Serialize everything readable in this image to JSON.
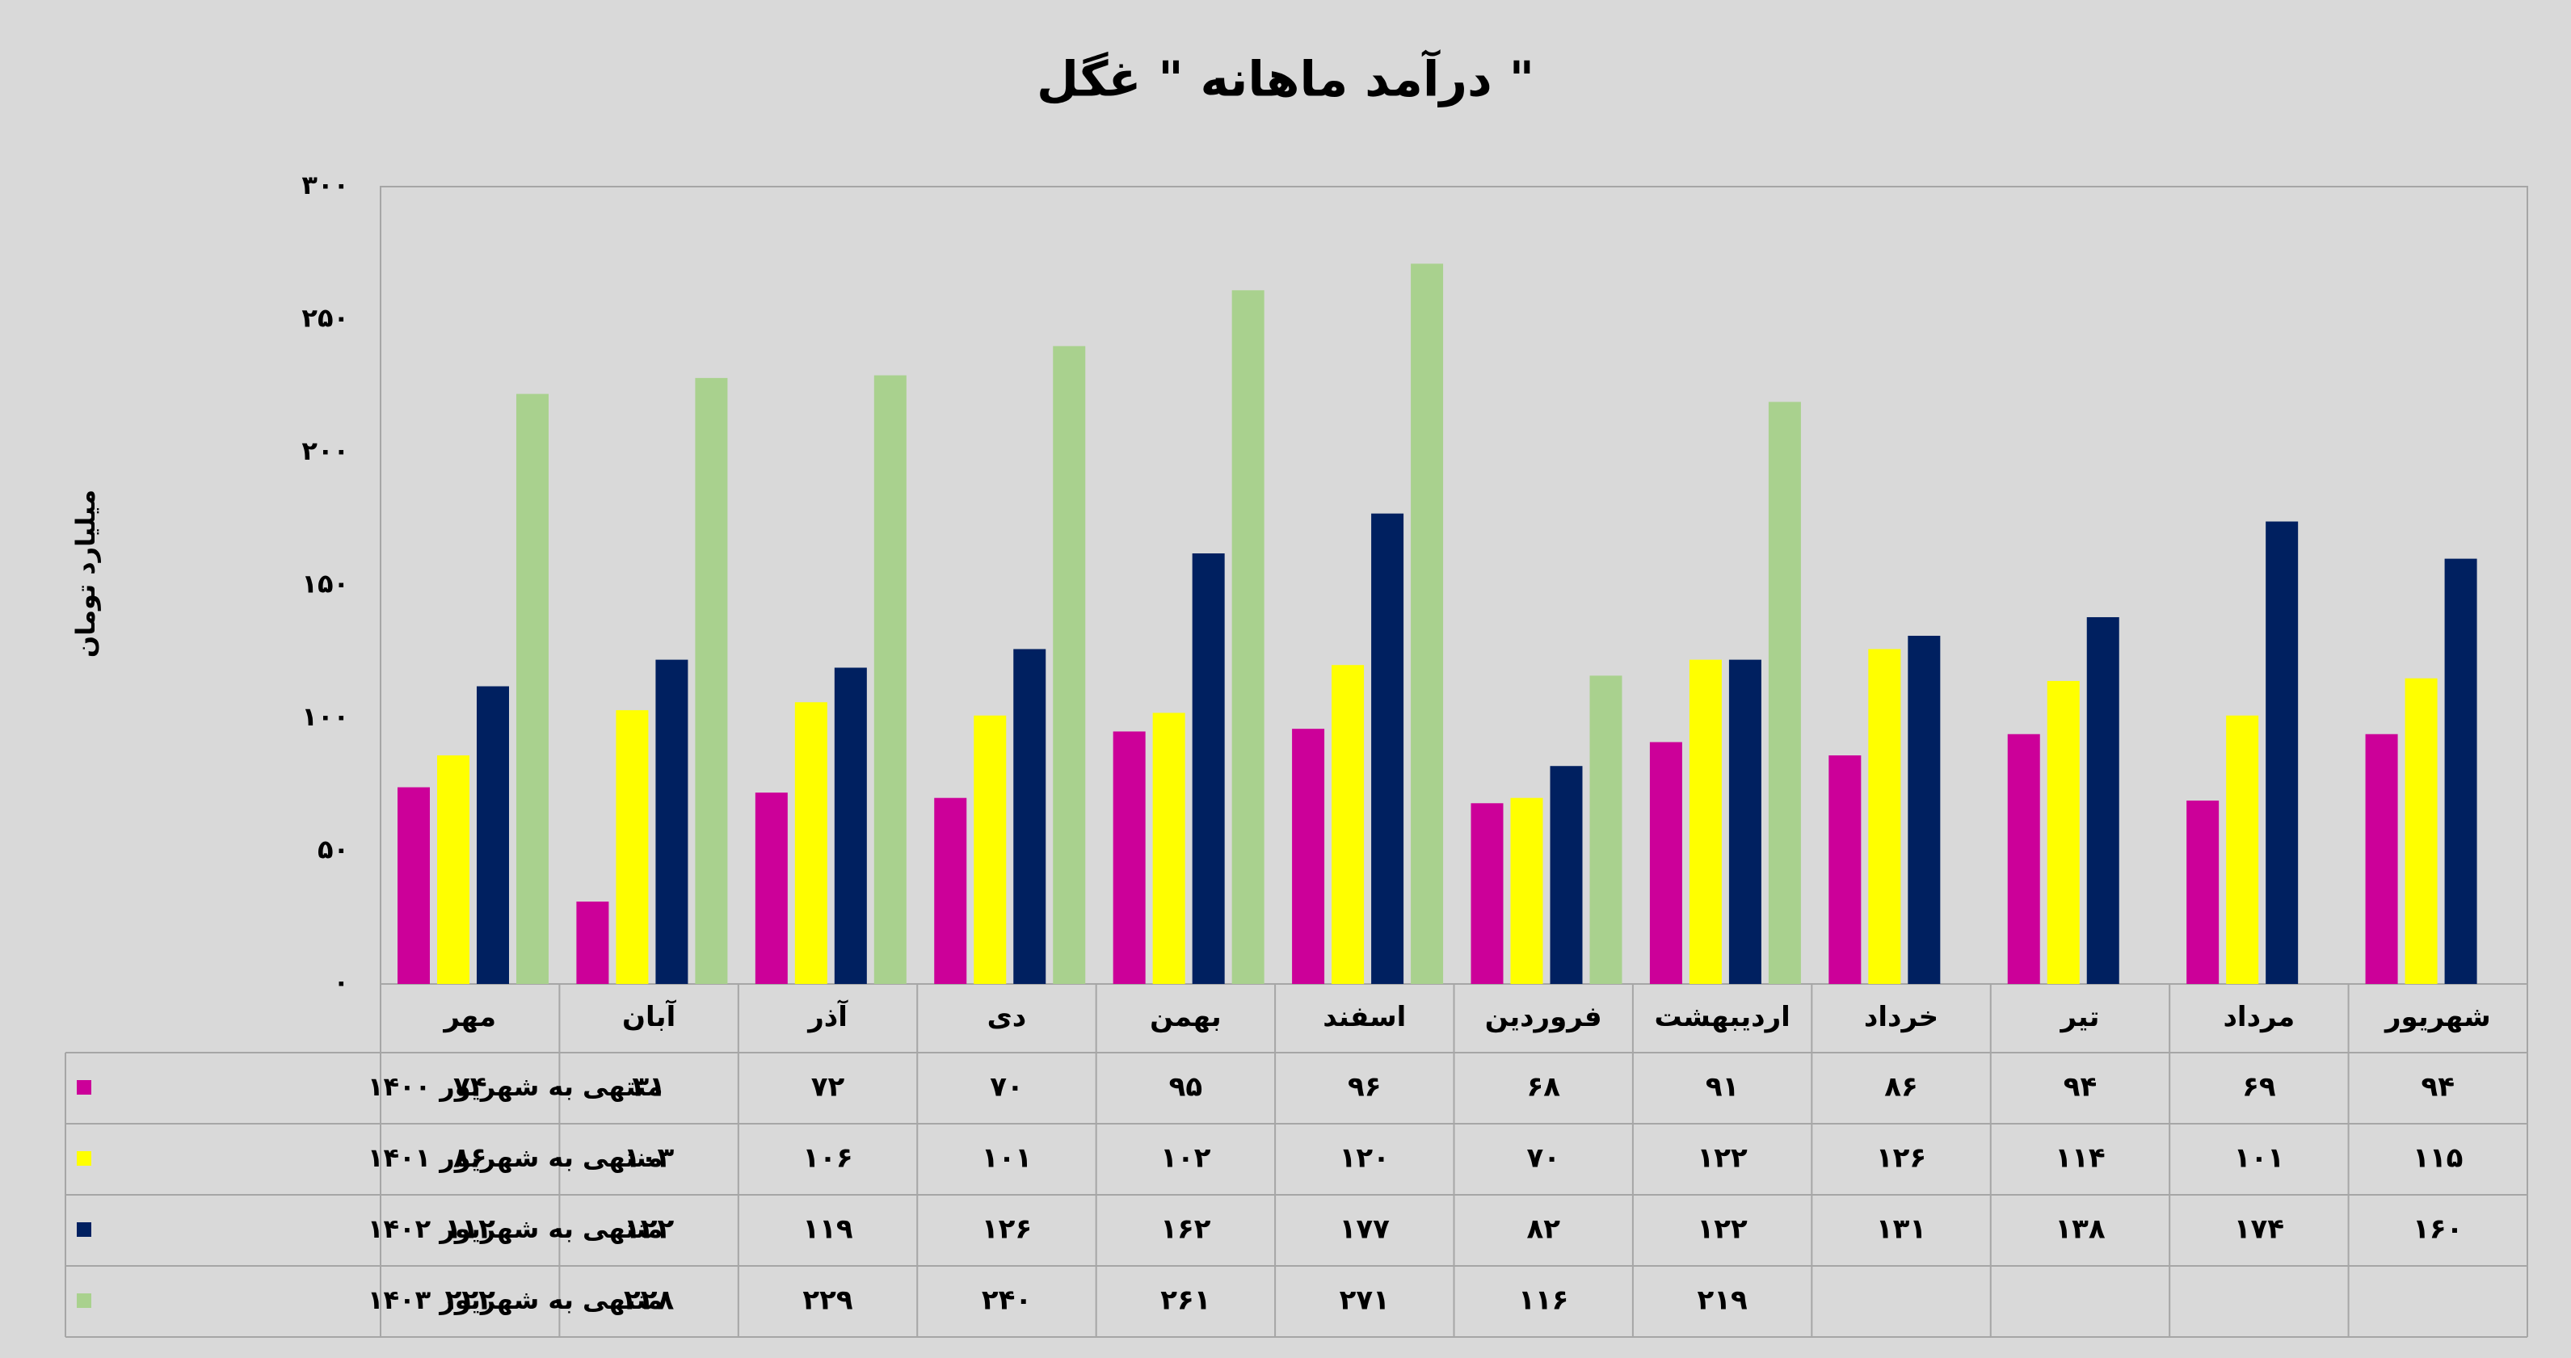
{
  "chart_data": {
    "type": "bar",
    "title": "درآمد ماهانه \" غگل \"",
    "y_label": "میلیارد تومان",
    "categories": [
      "مهر",
      "آبان",
      "آذر",
      "دی",
      "بهمن",
      "اسفند",
      "فروردین",
      "اردیبهشت",
      "خرداد",
      "تیر",
      "مرداد",
      "شهریور"
    ],
    "series": [
      {
        "name": "منتهی به شهریور ۱۴۰۰",
        "color": "#cc0099",
        "values": [
          74,
          31,
          72,
          70,
          95,
          96,
          68,
          91,
          86,
          94,
          69,
          94
        ],
        "value_labels": [
          "۷۴",
          "۳۱",
          "۷۲",
          "۷۰",
          "۹۵",
          "۹۶",
          "۶۸",
          "۹۱",
          "۸۶",
          "۹۴",
          "۶۹",
          "۹۴"
        ]
      },
      {
        "name": "منتهی به شهریور ۱۴۰۱",
        "color": "#ffff00",
        "values": [
          86,
          103,
          106,
          101,
          102,
          120,
          70,
          122,
          126,
          114,
          101,
          115
        ],
        "value_labels": [
          "۸۶",
          "۱۰۳",
          "۱۰۶",
          "۱۰۱",
          "۱۰۲",
          "۱۲۰",
          "۷۰",
          "۱۲۲",
          "۱۲۶",
          "۱۱۴",
          "۱۰۱",
          "۱۱۵"
        ]
      },
      {
        "name": "منتهی به شهریور ۱۴۰۲",
        "color": "#002060",
        "values": [
          112,
          122,
          119,
          126,
          162,
          177,
          82,
          122,
          131,
          138,
          174,
          160
        ],
        "value_labels": [
          "۱۱۲",
          "۱۲۲",
          "۱۱۹",
          "۱۲۶",
          "۱۶۲",
          "۱۷۷",
          "۸۲",
          "۱۲۲",
          "۱۳۱",
          "۱۳۸",
          "۱۷۴",
          "۱۶۰"
        ]
      },
      {
        "name": "منتهی به شهریور ۱۴۰۳",
        "color": "#a9d18e",
        "values": [
          222,
          228,
          229,
          240,
          261,
          271,
          116,
          219,
          null,
          null,
          null,
          null
        ],
        "value_labels": [
          "۲۲۲",
          "۲۲۸",
          "۲۲۹",
          "۲۴۰",
          "۲۶۱",
          "۲۷۱",
          "۱۱۶",
          "۲۱۹",
          null,
          null,
          null,
          null
        ]
      }
    ],
    "ylim": [
      0,
      300
    ],
    "yticks": [
      {
        "value": 0,
        "label": "۰"
      },
      {
        "value": 50,
        "label": "۵۰"
      },
      {
        "value": 100,
        "label": "۱۰۰"
      },
      {
        "value": 150,
        "label": "۱۵۰"
      },
      {
        "value": 200,
        "label": "۲۰۰"
      },
      {
        "value": 250,
        "label": "۲۵۰"
      },
      {
        "value": 300,
        "label": "۳۰۰"
      }
    ],
    "grid": false,
    "data_table": true
  }
}
